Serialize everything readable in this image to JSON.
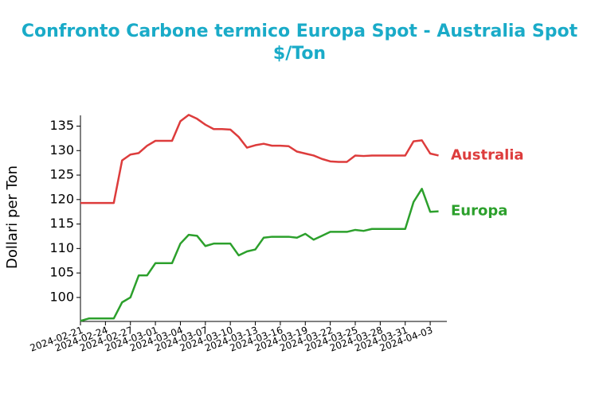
{
  "chart_data": {
    "type": "line",
    "title": "Confronto Carbone termico Europa Spot - Australia Spot $/Ton",
    "y_label": "Dollari per Ton",
    "x": [
      "2024-02-21",
      "2024-02-22",
      "2024-02-23",
      "2024-02-24",
      "2024-02-25",
      "2024-02-26",
      "2024-02-27",
      "2024-02-28",
      "2024-02-29",
      "2024-03-01",
      "2024-03-02",
      "2024-03-03",
      "2024-03-04",
      "2024-03-05",
      "2024-03-06",
      "2024-03-07",
      "2024-03-08",
      "2024-03-09",
      "2024-03-10",
      "2024-03-11",
      "2024-03-12",
      "2024-03-13",
      "2024-03-14",
      "2024-03-15",
      "2024-03-16",
      "2024-03-17",
      "2024-03-18",
      "2024-03-19",
      "2024-03-20",
      "2024-03-21",
      "2024-03-22",
      "2024-03-23",
      "2024-03-24",
      "2024-03-25",
      "2024-03-26",
      "2024-03-27",
      "2024-03-28",
      "2024-03-29",
      "2024-03-30",
      "2024-03-31",
      "2024-04-01",
      "2024-04-02",
      "2024-04-03",
      "2024-04-04"
    ],
    "series": [
      {
        "name": "Australia",
        "color": "#dd3c3c",
        "values": [
          119.3,
          119.3,
          119.3,
          119.3,
          119.3,
          128,
          129.2,
          129.5,
          131,
          132,
          132,
          132,
          136,
          137.3,
          136.5,
          135.3,
          134.4,
          134.4,
          134.3,
          132.8,
          130.6,
          131.1,
          131.4,
          131,
          131,
          130.9,
          129.8,
          129.4,
          129,
          128.3,
          127.8,
          127.7,
          127.7,
          129,
          128.9,
          129,
          129,
          129,
          129,
          129,
          131.9,
          132.1,
          129.4,
          129
        ]
      },
      {
        "name": "Europa",
        "color": "#2ca02c",
        "values": [
          95.2,
          95.7,
          95.7,
          95.7,
          95.7,
          99,
          100,
          104.5,
          104.5,
          107,
          107,
          107,
          111,
          112.8,
          112.6,
          110.5,
          111,
          111,
          111,
          108.6,
          109.4,
          109.8,
          112.2,
          112.4,
          112.4,
          112.4,
          112.2,
          113,
          111.8,
          112.6,
          113.4,
          113.4,
          113.4,
          113.8,
          113.6,
          114,
          114,
          114,
          114,
          114,
          119.5,
          122.2,
          117.5,
          117.6
        ]
      }
    ],
    "xlim": [
      "2024-02-21",
      "2024-04-05"
    ],
    "xticks": [
      "2024-02-21",
      "2024-02-24",
      "2024-02-27",
      "2024-03-01",
      "2024-03-04",
      "2024-03-07",
      "2024-03-10",
      "2024-03-13",
      "2024-03-16",
      "2024-03-19",
      "2024-03-22",
      "2024-03-25",
      "2024-03-28",
      "2024-03-31",
      "2024-04-03"
    ],
    "ylim": [
      95.1,
      137.2
    ],
    "yticks": [
      100,
      105,
      110,
      115,
      120,
      125,
      130,
      135
    ]
  }
}
